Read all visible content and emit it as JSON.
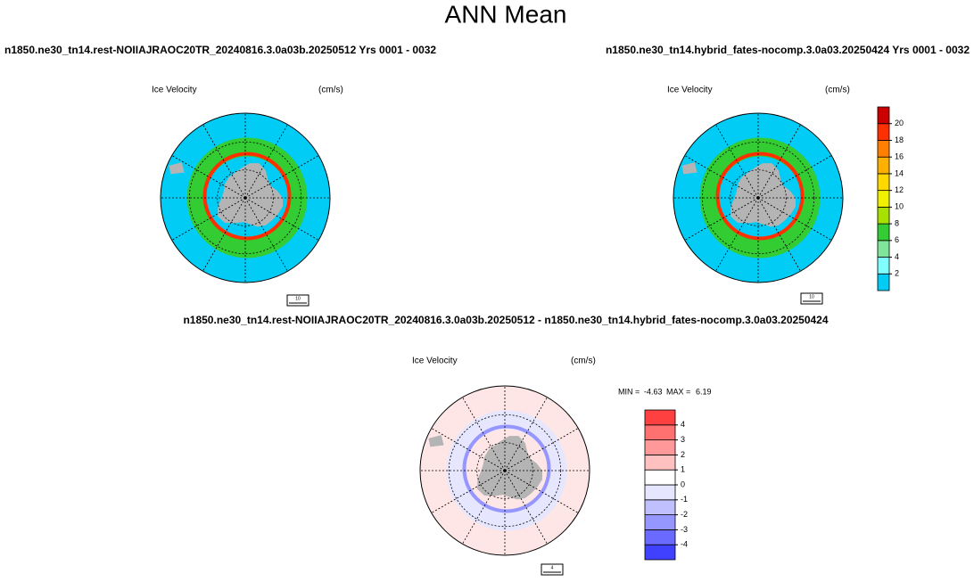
{
  "title": "ANN Mean",
  "panels": [
    {
      "subtitle": "n1850.ne30_tn14.rest-NOIIAJRAOC20TR_20240816.3.0a03b.20250512  Yrs 0001 - 0032",
      "variable": "Ice Velocity",
      "units": "(cm/s)",
      "vector_ref": "10"
    },
    {
      "subtitle": "n1850.ne30_tn14.hybrid_fates-nocomp.3.0a03.20250424  Yrs 0001 - 0032",
      "variable": "Ice Velocity",
      "units": "(cm/s)",
      "vector_ref": "10"
    },
    {
      "subtitle": "n1850.ne30_tn14.rest-NOIIAJRAOC20TR_20240816.3.0a03b.20250512 - n1850.ne30_tn14.hybrid_fates-nocomp.3.0a03.20250424",
      "variable": "Ice Velocity",
      "units": "(cm/s)",
      "vector_ref": "4",
      "stats": {
        "min_label": "MIN =",
        "min": -4.63,
        "max_label": "MAX =",
        "max": 6.19
      }
    }
  ],
  "colorbars": [
    {
      "levels": [
        2,
        4,
        6,
        8,
        10,
        12,
        14,
        16,
        18,
        20
      ],
      "colors": [
        "#00ccf5",
        "#80ffff",
        "#7fe59a",
        "#33cc33",
        "#a8e000",
        "#f0f000",
        "#ffd800",
        "#ffb000",
        "#ff8000",
        "#ff3000",
        "#cc0000"
      ]
    },
    {
      "levels": [
        -4,
        -3,
        -2,
        -1,
        0,
        1,
        2,
        3,
        4
      ],
      "colors": [
        "#4040ff",
        "#6a6aff",
        "#9696ff",
        "#c0c0ff",
        "#e6e6ff",
        "#ffffff",
        "#ffc0c0",
        "#ff9898",
        "#ff7070",
        "#ff4040"
      ]
    }
  ]
}
